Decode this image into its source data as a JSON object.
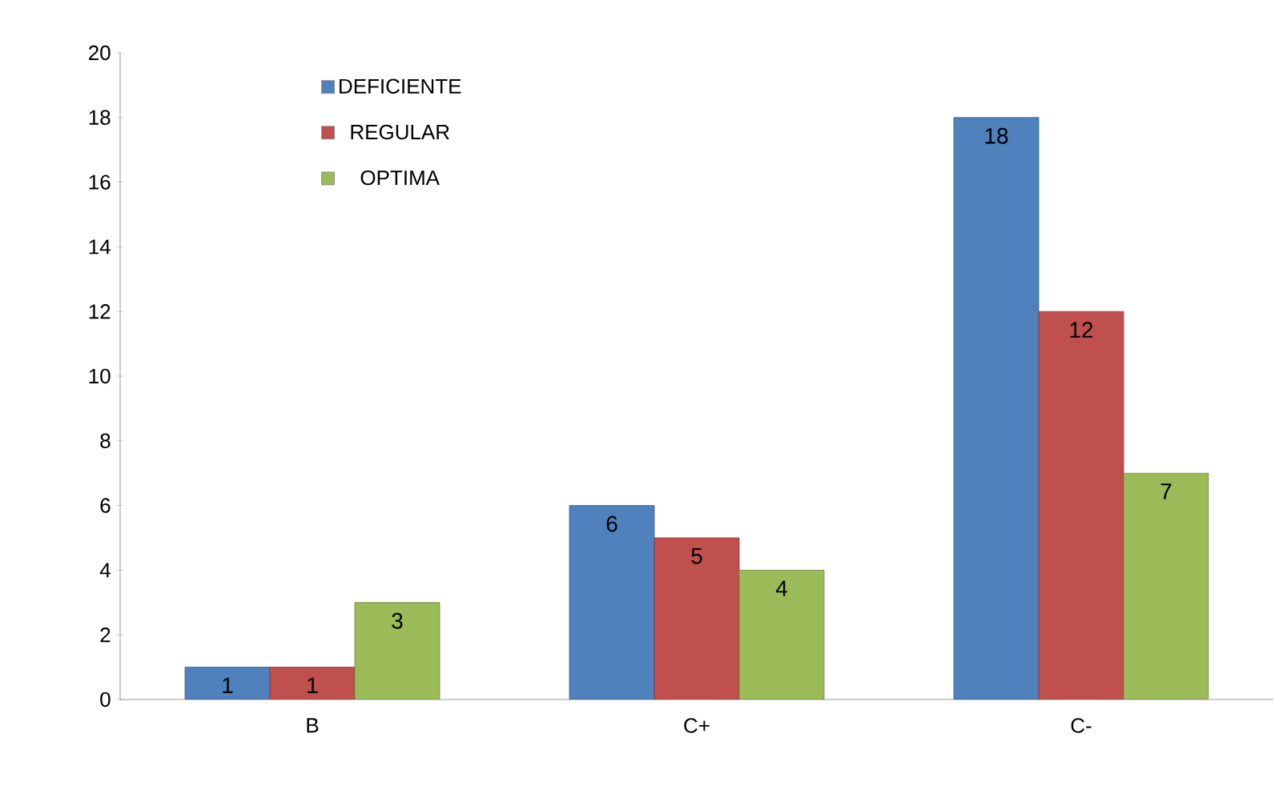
{
  "chart_data": {
    "type": "bar",
    "categories": [
      "B",
      "C+",
      "C-"
    ],
    "series": [
      {
        "name": "DEFICIENTE",
        "color": "#4f81bd",
        "values": [
          1,
          6,
          18
        ]
      },
      {
        "name": "REGULAR",
        "color": "#c0504d",
        "values": [
          1,
          5,
          12
        ]
      },
      {
        "name": "OPTIMA",
        "color": "#9bbb59",
        "values": [
          3,
          4,
          7
        ]
      }
    ],
    "ylim": [
      0,
      20
    ],
    "yticks": [
      0,
      2,
      4,
      6,
      8,
      10,
      12,
      14,
      16,
      18,
      20
    ],
    "grid": false,
    "legend": "top left",
    "data_labels": true
  }
}
